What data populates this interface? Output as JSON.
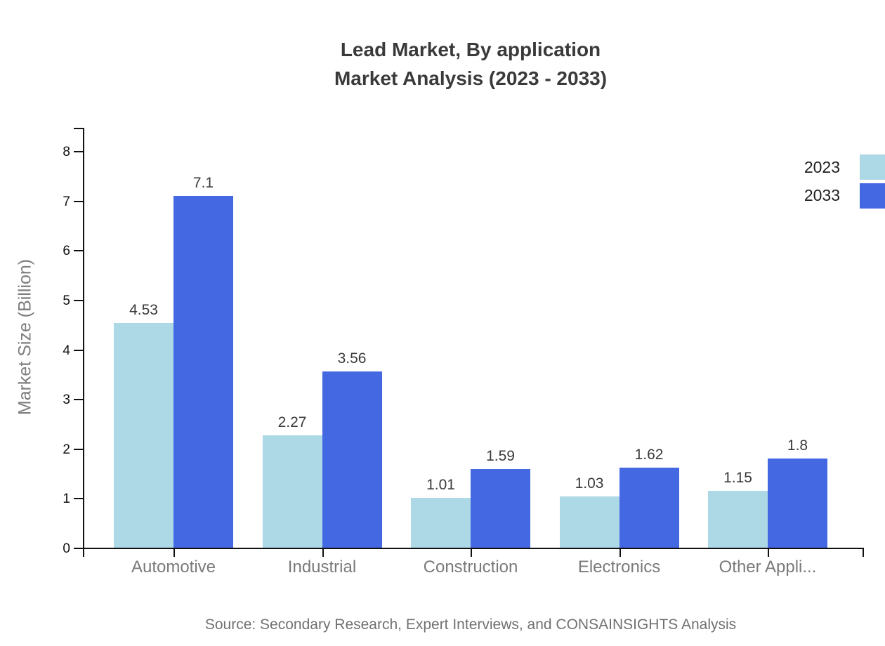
{
  "title": {
    "line1": "Lead Market, By application",
    "line2": "Market Analysis (2023 - 2033)"
  },
  "source": "Source: Secondary Research, Expert Interviews, and CONSAINSIGHTS Analysis",
  "colors": {
    "series_2023": "#add8e6",
    "series_2033": "#4368e2",
    "title_text": "#3a3a3a",
    "axis_text": "#111111",
    "muted_text": "#7a7a7a"
  },
  "chart_data": {
    "type": "bar",
    "title": "Lead Market, By application Market Analysis (2023 - 2033)",
    "categories": [
      "Automotive",
      "Industrial",
      "Construction",
      "Electronics",
      "Other Appli..."
    ],
    "series": [
      {
        "name": "2023",
        "color": "#add8e6",
        "values": [
          4.53,
          2.27,
          1.01,
          1.03,
          1.15
        ]
      },
      {
        "name": "2033",
        "color": "#4368e2",
        "values": [
          7.1,
          3.56,
          1.59,
          1.62,
          1.8
        ]
      }
    ],
    "xlabel": "",
    "ylabel": "Market Size (Billion)",
    "ylim": [
      0,
      8
    ],
    "yticks": [
      0,
      1,
      2,
      3,
      4,
      5,
      6,
      7,
      8
    ],
    "grid": false,
    "value_labels": true,
    "legend_position": "top-right"
  }
}
